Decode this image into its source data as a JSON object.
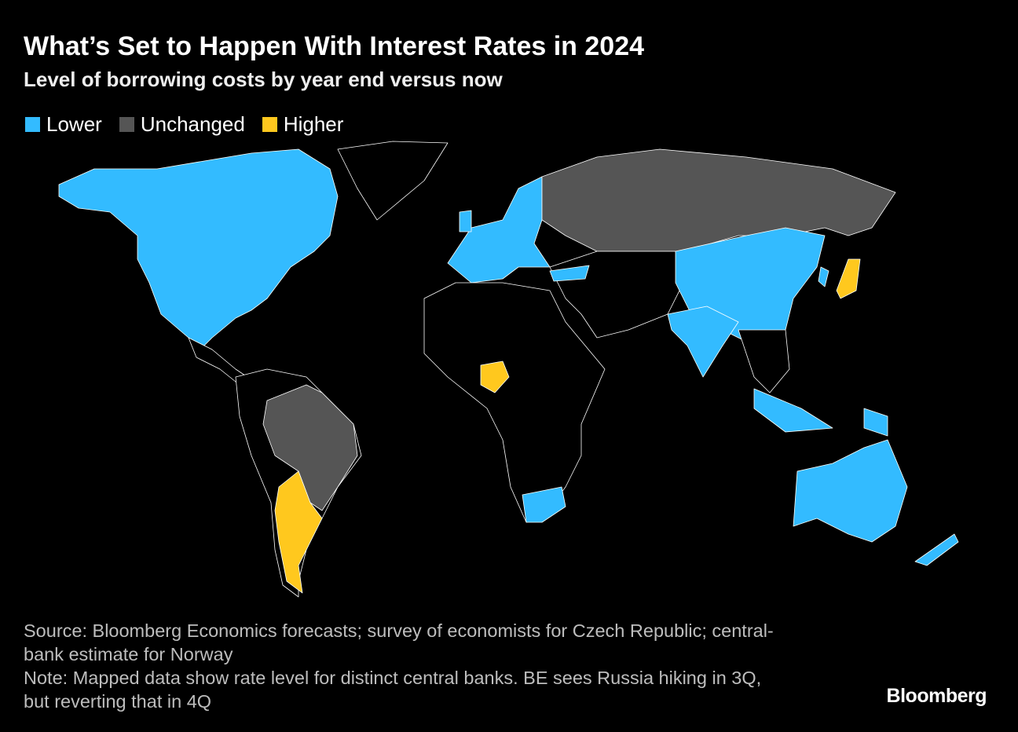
{
  "header": {
    "title": "What’s Set to Happen With Interest Rates in 2024",
    "subtitle": "Level of borrowing costs by year end versus now"
  },
  "legend": [
    {
      "label": "Lower",
      "color": "#33bbff"
    },
    {
      "label": "Unchanged",
      "color": "#555555"
    },
    {
      "label": "Higher",
      "color": "#ffc81e"
    }
  ],
  "footer": {
    "source": "Source: Bloomberg Economics forecasts; survey of economists for Czech Republic; central-bank estimate for Norway",
    "note": "Note: Mapped data show rate level for distinct central banks. BE sees Russia hiking in 3Q, but reverting that in 4Q"
  },
  "brand": "Bloomberg"
}
